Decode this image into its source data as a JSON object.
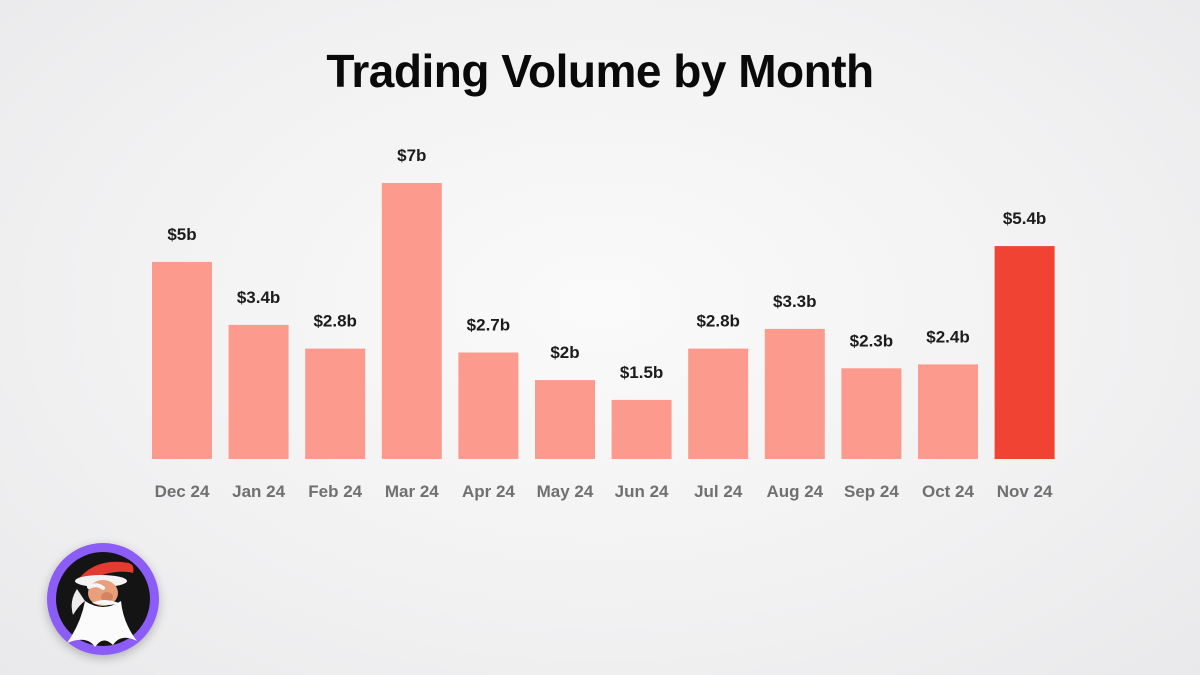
{
  "header": {
    "title": "Trading Volume by Month"
  },
  "colors": {
    "bar": "#fc9a8e",
    "highlight": "#f04333",
    "background": "#f3f3f4",
    "avatar_ring": "#8b5cf6"
  },
  "avatar": {
    "icon": "bearded-gnome-mascot-icon"
  },
  "chart_data": {
    "type": "bar",
    "title": "Trading Volume by Month",
    "xlabel": "",
    "ylabel": "",
    "categories": [
      "Dec 24",
      "Jan 24",
      "Feb 24",
      "Mar 24",
      "Apr 24",
      "May 24",
      "Jun 24",
      "Jul 24",
      "Aug 24",
      "Sep 24",
      "Oct 24",
      "Nov 24"
    ],
    "values": [
      5,
      3.4,
      2.8,
      7,
      2.7,
      2,
      1.5,
      2.8,
      3.3,
      2.3,
      2.4,
      5.4
    ],
    "value_labels": [
      "$5b",
      "$3.4b",
      "$2.8b",
      "$7b",
      "$2.7b",
      "$2b",
      "$1.5b",
      "$2.8b",
      "$3.3b",
      "$2.3b",
      "$2.4b",
      "$5.4b"
    ],
    "units": "USD billions",
    "highlight_category": "Nov 24",
    "grid": false,
    "legend": "none"
  }
}
